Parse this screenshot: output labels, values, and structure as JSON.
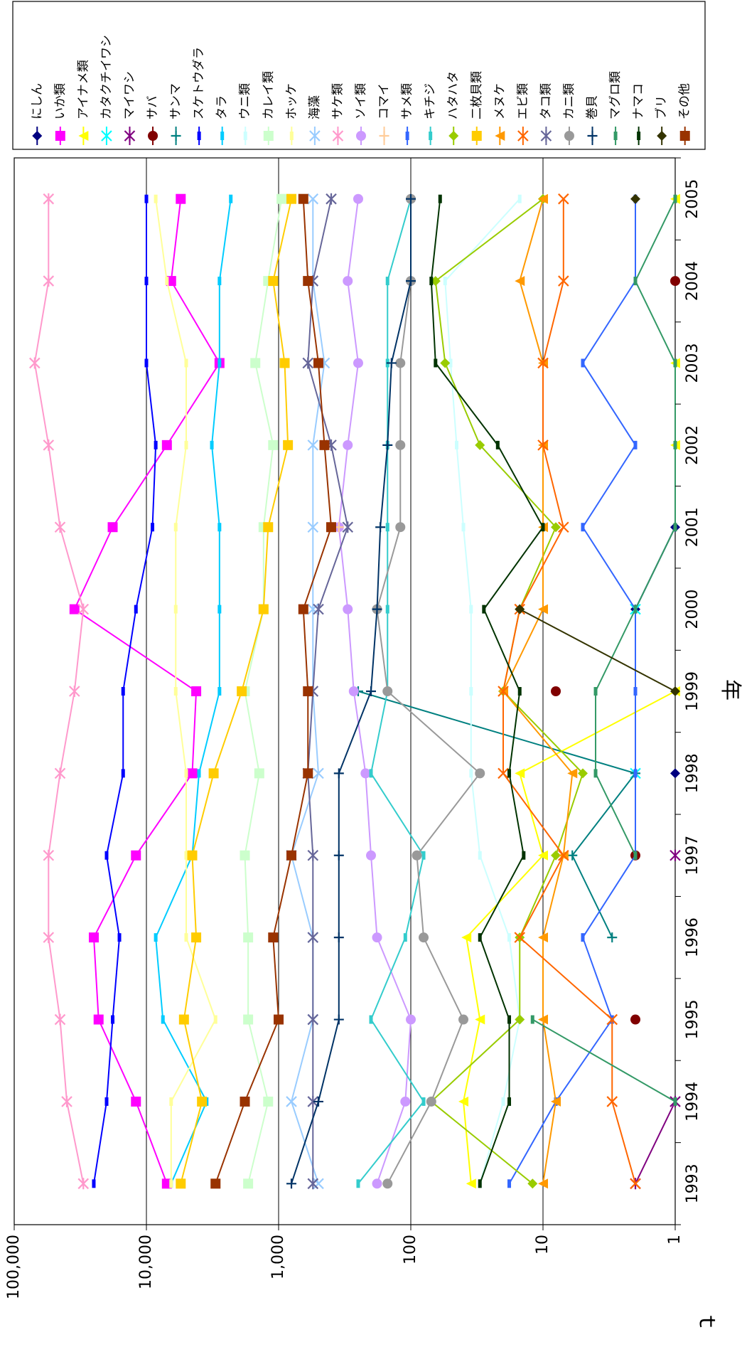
{
  "chart_data": {
    "type": "line",
    "orientation": "rotated-90-clockwise",
    "title": "",
    "xlabel": "年",
    "ylabel": "ｔ",
    "y_scale": "log",
    "ylim": [
      1,
      100000
    ],
    "y_ticks": [
      "1",
      "10",
      "100",
      "1,000",
      "10,000",
      "100,000"
    ],
    "y_tick_values": [
      1,
      10,
      100,
      1000,
      10000,
      100000
    ],
    "categories": [
      "1993",
      "1994",
      "1995",
      "1996",
      "1997",
      "1998",
      "1999",
      "2000",
      "2001",
      "2002",
      "2003",
      "2004",
      "2005"
    ],
    "grid": true,
    "legend_position": "right",
    "series": [
      {
        "name": "にしん",
        "color": "#000080",
        "marker": "diamond",
        "values": [
          null,
          null,
          null,
          null,
          null,
          1,
          null,
          2,
          1,
          null,
          null,
          null,
          null
        ]
      },
      {
        "name": "いか類",
        "color": "#FF00FF",
        "marker": "square",
        "values": [
          7000,
          12000,
          23000,
          25000,
          12000,
          4500,
          4200,
          35000,
          18000,
          7000,
          2800,
          6500,
          5500
        ]
      },
      {
        "name": "アイナメ類",
        "color": "#FFFF00",
        "marker": "triangle",
        "values": [
          35,
          40,
          30,
          38,
          10,
          15,
          1,
          null,
          null,
          1,
          1,
          null,
          1
        ]
      },
      {
        "name": "カタクチイワシ",
        "color": "#00FFFF",
        "marker": "x",
        "values": [
          null,
          null,
          null,
          null,
          null,
          2,
          null,
          2,
          null,
          null,
          null,
          null,
          null
        ]
      },
      {
        "name": "マイワシ",
        "color": "#800080",
        "marker": "star",
        "values": [
          2,
          1,
          null,
          null,
          1,
          null,
          null,
          null,
          null,
          null,
          null,
          null,
          null
        ]
      },
      {
        "name": "サバ",
        "color": "#800000",
        "marker": "circle",
        "values": [
          null,
          null,
          2,
          null,
          2,
          null,
          8,
          null,
          null,
          null,
          null,
          1,
          null
        ]
      },
      {
        "name": "サンマ",
        "color": "#008080",
        "marker": "plus",
        "values": [
          null,
          null,
          null,
          3,
          6,
          2,
          250,
          null,
          null,
          null,
          null,
          null,
          null
        ]
      },
      {
        "name": "スケトウダラ",
        "color": "#0000FF",
        "marker": "dash",
        "values": [
          25000,
          20000,
          18000,
          16000,
          20000,
          15000,
          15000,
          12000,
          9000,
          8500,
          10000,
          10000,
          10000
        ]
      },
      {
        "name": "タラ",
        "color": "#00CCFF",
        "marker": "dash",
        "values": [
          6500,
          3500,
          7500,
          8500,
          4500,
          4000,
          2800,
          2800,
          2800,
          3200,
          2800,
          2800,
          2300
        ]
      },
      {
        "name": "ウニ類",
        "color": "#CCFFFF",
        "marker": "dash",
        "values": [
          30,
          20,
          15,
          18,
          30,
          35,
          35,
          35,
          40,
          45,
          50,
          55,
          15
        ]
      },
      {
        "name": "カレイ類",
        "color": "#CCFFCC",
        "marker": "square",
        "values": [
          1700,
          1200,
          1700,
          1700,
          1800,
          1400,
          1800,
          1300,
          1300,
          1100,
          1500,
          1200,
          950
        ]
      },
      {
        "name": "ホッケ",
        "color": "#FFFF99",
        "marker": "dash",
        "values": [
          6500,
          6500,
          3000,
          5000,
          5000,
          5000,
          6000,
          6000,
          6000,
          5000,
          5000,
          7000,
          8500
        ]
      },
      {
        "name": "海藻",
        "color": "#99CCFF",
        "marker": "x",
        "values": [
          500,
          800,
          550,
          550,
          800,
          500,
          550,
          550,
          550,
          550,
          450,
          550,
          550
        ]
      },
      {
        "name": "サケ類",
        "color": "#FF99CC",
        "marker": "asterisk",
        "values": [
          30000,
          40000,
          45000,
          55000,
          55000,
          45000,
          35000,
          30000,
          45000,
          55000,
          70000,
          55000,
          55000
        ]
      },
      {
        "name": "ソイ類",
        "color": "#CC99FF",
        "marker": "circle",
        "values": [
          180,
          110,
          100,
          180,
          200,
          220,
          270,
          300,
          350,
          300,
          250,
          300,
          250
        ]
      },
      {
        "name": "コマイ",
        "color": "#FFCC99",
        "marker": "plus",
        "values": [
          null,
          null,
          null,
          null,
          null,
          null,
          null,
          null,
          350,
          null,
          null,
          null,
          100
        ]
      },
      {
        "name": "サメ類",
        "color": "#3366FF",
        "marker": "dash",
        "values": [
          18,
          8,
          3,
          5,
          2,
          2,
          2,
          2,
          5,
          2,
          5,
          2,
          2
        ]
      },
      {
        "name": "キチジ",
        "color": "#33CCCC",
        "marker": "dash",
        "values": [
          250,
          80,
          200,
          110,
          80,
          200,
          150,
          150,
          150,
          150,
          150,
          150,
          100
        ]
      },
      {
        "name": "ハタハタ",
        "color": "#99CC00",
        "marker": "diamond",
        "values": [
          12,
          70,
          15,
          15,
          8,
          5,
          20,
          15,
          8,
          30,
          55,
          65,
          10
        ]
      },
      {
        "name": "二枚貝類",
        "color": "#FFCC00",
        "marker": "square",
        "values": [
          5500,
          3800,
          5200,
          4200,
          4500,
          3100,
          1900,
          1300,
          1200,
          850,
          900,
          1100,
          800
        ]
      },
      {
        "name": "メヌケ",
        "color": "#FF9900",
        "marker": "triangle",
        "values": [
          10,
          8,
          10,
          10,
          7,
          6,
          20,
          10,
          10,
          10,
          10,
          15,
          10
        ]
      },
      {
        "name": "エビ類",
        "color": "#FF6600",
        "marker": "x",
        "values": [
          2,
          3,
          3,
          15,
          7,
          20,
          20,
          15,
          7,
          10,
          10,
          7,
          7
        ]
      },
      {
        "name": "タコ類",
        "color": "#666699",
        "marker": "star",
        "values": [
          550,
          550,
          550,
          550,
          550,
          600,
          550,
          500,
          300,
          400,
          600,
          550,
          400
        ]
      },
      {
        "name": "カニ類",
        "color": "#999999",
        "marker": "circle",
        "values": [
          150,
          70,
          40,
          80,
          90,
          30,
          150,
          180,
          120,
          120,
          120,
          100,
          100
        ]
      },
      {
        "name": "巻貝",
        "color": "#003366",
        "marker": "plus",
        "values": [
          800,
          500,
          350,
          350,
          350,
          350,
          200,
          180,
          170,
          150,
          140,
          100,
          100
        ]
      },
      {
        "name": "マグロ類",
        "color": "#339966",
        "marker": "dash",
        "values": [
          null,
          1,
          12,
          null,
          2,
          4,
          4,
          2,
          1,
          1,
          1,
          2,
          1
        ]
      },
      {
        "name": "ナマコ",
        "color": "#003300",
        "marker": "dash",
        "values": [
          30,
          18,
          18,
          30,
          14,
          18,
          15,
          28,
          10,
          22,
          65,
          70,
          60
        ]
      },
      {
        "name": "ブリ",
        "color": "#333300",
        "marker": "diamond",
        "values": [
          null,
          null,
          null,
          null,
          null,
          null,
          1,
          15,
          null,
          null,
          null,
          null,
          2
        ]
      },
      {
        "name": "その他",
        "color": "#993300",
        "marker": "square",
        "values": [
          3000,
          1800,
          1000,
          1100,
          800,
          600,
          600,
          650,
          400,
          450,
          500,
          600,
          650
        ]
      }
    ]
  }
}
